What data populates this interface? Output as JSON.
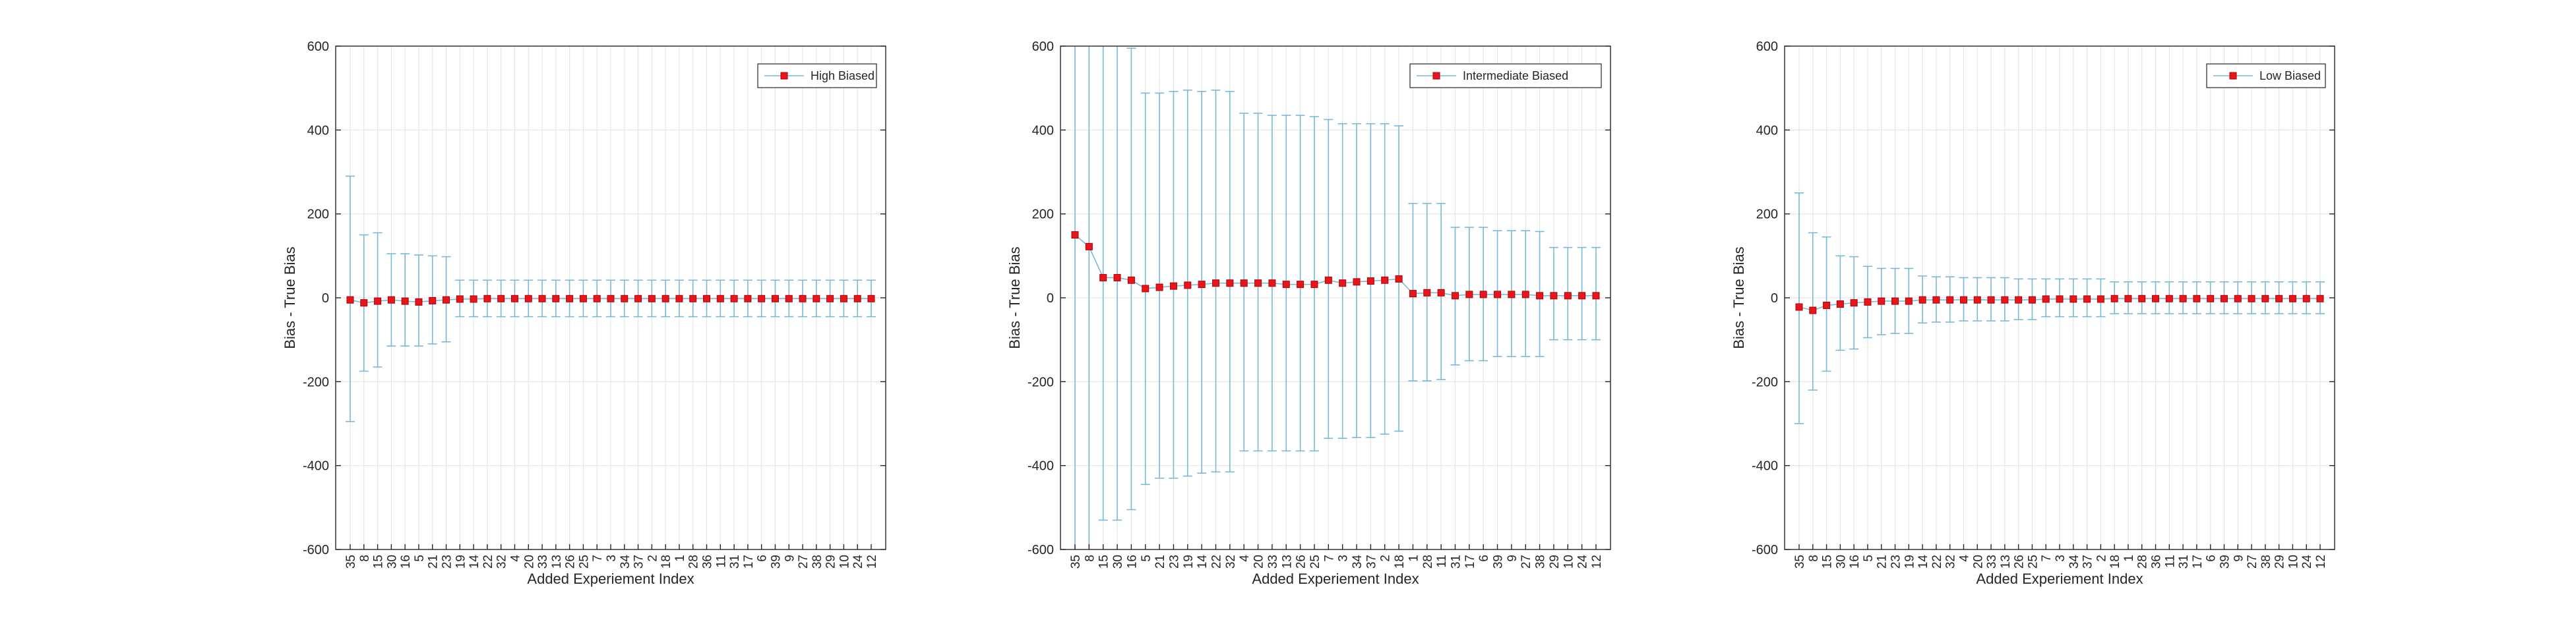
{
  "figure": {
    "background": "#ffffff"
  },
  "style": {
    "errorbar_color": "#7ab8d9",
    "marker_color": "#e8161b",
    "marker_edge": "#b00000",
    "line_color": "#7ab8d9",
    "grid_color": "#e6e6e6",
    "axis_color": "#262626"
  },
  "chart_data": [
    {
      "type": "line",
      "subtype": "errorbar",
      "xlabel": "Added Experiement Index",
      "ylabel": "Bias - True Bias",
      "ylim": [
        -600,
        600
      ],
      "yticks": [
        -600,
        -400,
        -200,
        0,
        200,
        400,
        600
      ],
      "grid": true,
      "legend": "top-right",
      "categories": [
        "35",
        "8",
        "15",
        "30",
        "16",
        "5",
        "21",
        "23",
        "19",
        "14",
        "22",
        "32",
        "4",
        "20",
        "33",
        "13",
        "26",
        "25",
        "7",
        "3",
        "34",
        "37",
        "2",
        "18",
        "1",
        "28",
        "36",
        "11",
        "31",
        "17",
        "6",
        "39",
        "9",
        "27",
        "38",
        "29",
        "10",
        "24",
        "12"
      ],
      "series": [
        {
          "name": "High Biased",
          "values": [
            -5,
            -12,
            -8,
            -5,
            -8,
            -10,
            -7,
            -5,
            -3,
            -3,
            -2,
            -2,
            -2,
            -2,
            -2,
            -2,
            -2,
            -2,
            -2,
            -2,
            -2,
            -2,
            -2,
            -2,
            -2,
            -2,
            -2,
            -2,
            -2,
            -2,
            -2,
            -2,
            -2,
            -2,
            -2,
            -2,
            -2,
            -2,
            -2
          ],
          "lower": [
            -295,
            -175,
            -165,
            -115,
            -115,
            -115,
            -110,
            -105,
            -45,
            -45,
            -45,
            -45,
            -45,
            -45,
            -45,
            -45,
            -45,
            -45,
            -45,
            -45,
            -45,
            -45,
            -45,
            -45,
            -45,
            -45,
            -45,
            -45,
            -45,
            -45,
            -45,
            -45,
            -45,
            -45,
            -45,
            -45,
            -45,
            -45,
            -45
          ],
          "upper": [
            290,
            150,
            155,
            105,
            105,
            102,
            100,
            98,
            42,
            42,
            42,
            42,
            42,
            42,
            42,
            42,
            42,
            42,
            42,
            42,
            42,
            42,
            42,
            42,
            42,
            42,
            42,
            42,
            42,
            42,
            42,
            42,
            42,
            42,
            42,
            42,
            42,
            42,
            42
          ]
        }
      ]
    },
    {
      "type": "line",
      "subtype": "errorbar",
      "xlabel": "Added Experiement Index",
      "ylabel": "Bias - True Bias",
      "ylim": [
        -600,
        600
      ],
      "yticks": [
        -600,
        -400,
        -200,
        0,
        200,
        400,
        600
      ],
      "grid": true,
      "legend": "top-right",
      "categories": [
        "35",
        "8",
        "15",
        "30",
        "16",
        "5",
        "21",
        "23",
        "19",
        "14",
        "22",
        "32",
        "4",
        "20",
        "33",
        "13",
        "26",
        "25",
        "7",
        "3",
        "34",
        "37",
        "2",
        "18",
        "1",
        "28",
        "11",
        "31",
        "17",
        "6",
        "39",
        "9",
        "27",
        "38",
        "29",
        "10",
        "24",
        "12"
      ],
      "series": [
        {
          "name": "Intermediate Biased",
          "values": [
            150,
            122,
            48,
            48,
            42,
            22,
            25,
            28,
            30,
            32,
            35,
            35,
            35,
            35,
            35,
            32,
            32,
            32,
            42,
            35,
            38,
            40,
            42,
            45,
            10,
            12,
            12,
            5,
            8,
            8,
            8,
            8,
            8,
            5,
            5,
            5,
            5,
            5
          ],
          "lower": [
            -700,
            -700,
            -530,
            -530,
            -505,
            -445,
            -430,
            -430,
            -425,
            -418,
            -415,
            -415,
            -365,
            -365,
            -365,
            -365,
            -365,
            -365,
            -335,
            -335,
            -333,
            -333,
            -325,
            -318,
            -198,
            -198,
            -195,
            -160,
            -150,
            -150,
            -140,
            -140,
            -140,
            -140,
            -100,
            -100,
            -100,
            -100
          ],
          "upper": [
            700,
            700,
            700,
            700,
            595,
            488,
            488,
            492,
            495,
            492,
            495,
            492,
            440,
            440,
            435,
            435,
            435,
            432,
            425,
            415,
            415,
            415,
            415,
            410,
            225,
            225,
            225,
            168,
            168,
            168,
            160,
            160,
            160,
            158,
            120,
            120,
            120,
            120
          ]
        }
      ]
    },
    {
      "type": "line",
      "subtype": "errorbar",
      "xlabel": "Added Experiement Index",
      "ylabel": "Bias - True Bias",
      "ylim": [
        -600,
        600
      ],
      "yticks": [
        -600,
        -400,
        -200,
        0,
        200,
        400,
        600
      ],
      "grid": true,
      "legend": "top-right",
      "categories": [
        "35",
        "8",
        "15",
        "30",
        "16",
        "5",
        "21",
        "23",
        "19",
        "14",
        "22",
        "32",
        "4",
        "20",
        "33",
        "13",
        "26",
        "25",
        "7",
        "3",
        "34",
        "37",
        "2",
        "18",
        "1",
        "28",
        "36",
        "11",
        "31",
        "17",
        "6",
        "39",
        "9",
        "27",
        "38",
        "29",
        "10",
        "24",
        "12"
      ],
      "series": [
        {
          "name": "Low Biased",
          "values": [
            -22,
            -30,
            -18,
            -15,
            -12,
            -10,
            -8,
            -8,
            -8,
            -5,
            -5,
            -5,
            -5,
            -5,
            -5,
            -5,
            -5,
            -5,
            -3,
            -3,
            -3,
            -3,
            -3,
            -2,
            -2,
            -2,
            -2,
            -2,
            -2,
            -2,
            -2,
            -2,
            -2,
            -2,
            -2,
            -2,
            -2,
            -2,
            -2
          ],
          "lower": [
            -300,
            -220,
            -175,
            -125,
            -122,
            -95,
            -88,
            -85,
            -85,
            -60,
            -58,
            -58,
            -55,
            -55,
            -55,
            -55,
            -52,
            -52,
            -45,
            -45,
            -45,
            -45,
            -45,
            -38,
            -38,
            -38,
            -38,
            -38,
            -38,
            -38,
            -38,
            -38,
            -38,
            -38,
            -38,
            -38,
            -38,
            -38,
            -38
          ],
          "upper": [
            250,
            155,
            145,
            100,
            98,
            75,
            70,
            70,
            70,
            52,
            50,
            50,
            48,
            48,
            48,
            48,
            45,
            45,
            45,
            45,
            45,
            45,
            45,
            38,
            38,
            38,
            38,
            38,
            38,
            38,
            38,
            38,
            38,
            38,
            38,
            38,
            38,
            38,
            38
          ]
        }
      ]
    }
  ]
}
